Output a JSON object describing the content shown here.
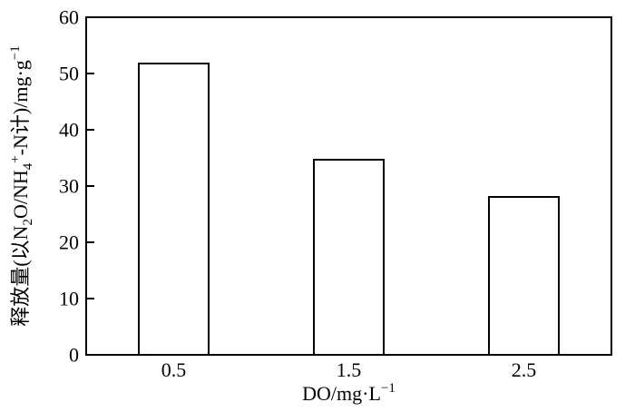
{
  "figure": {
    "background": "#ffffff",
    "axis_color": "#000000",
    "bar_fill": "#ffffff",
    "bar_stroke": "#000000",
    "text_color": "#000000"
  },
  "chart_data": {
    "type": "bar",
    "categories": [
      "0.5",
      "1.5",
      "2.5"
    ],
    "values": [
      51.8,
      34.7,
      28.1
    ],
    "title": "",
    "xlabel": "DO/mg·L⁻¹",
    "ylabel": "释放量(以N₂O/NH₄⁺-N计)/mg·g⁻¹",
    "xlabel_parts": [
      {
        "t": "DO/mg·L"
      },
      {
        "t": "−1",
        "sup": true
      }
    ],
    "ylabel_parts": [
      {
        "t": "释放量(以N"
      },
      {
        "t": "2",
        "sub": true
      },
      {
        "t": "O/NH"
      },
      {
        "t": "4",
        "sub": true
      },
      {
        "t": "+",
        "sup": true
      },
      {
        "t": "-N计)/mg·g"
      },
      {
        "t": "−1",
        "sup": true
      }
    ],
    "ylim": [
      0,
      60
    ],
    "yticks": [
      0,
      10,
      20,
      30,
      40,
      50,
      60
    ],
    "xlim_categories": 3,
    "bar_width_fraction": 0.4,
    "grid": false,
    "legend": "none",
    "frame": "box",
    "tick_direction": "in"
  }
}
